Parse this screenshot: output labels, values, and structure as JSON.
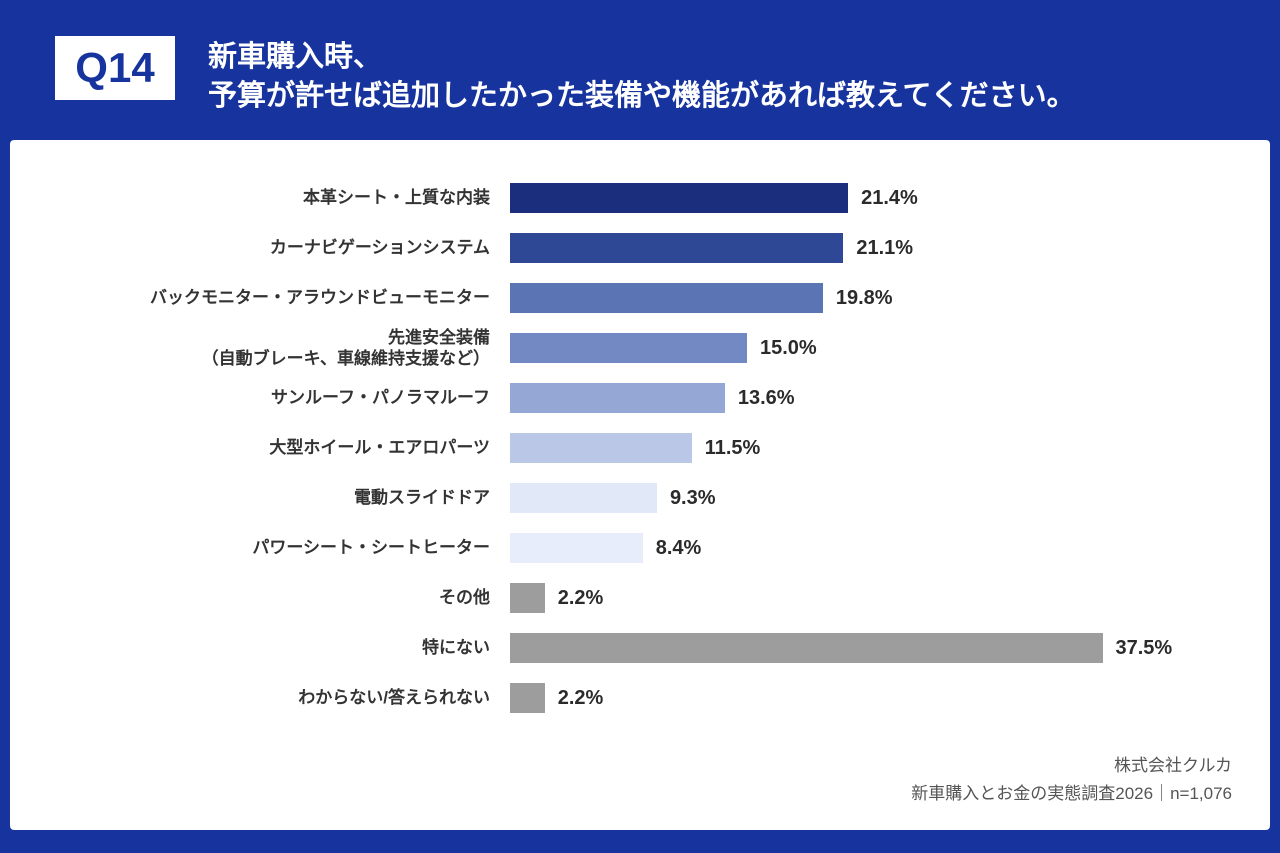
{
  "header": {
    "question_tag": "Q14",
    "title_line1": "新車購入時、",
    "title_line2": "予算が許せば追加したかった装備や機能があれば教えてください。"
  },
  "chart_data": {
    "type": "bar",
    "orientation": "horizontal",
    "title": "新車購入時、予算が許せば追加したかった装備や機能があれば教えてください。",
    "xlim": [
      0,
      40
    ],
    "grid": false,
    "legend": "none",
    "categories": [
      "本革シート・上質な内装",
      "カーナビゲーションシステム",
      "バックモニター・アラウンドビューモニター",
      "先進安全装備\n（自動ブレーキ、車線維持支援など）",
      "サンルーフ・パノラマルーフ",
      "大型ホイール・エアロパーツ",
      "電動スライドドア",
      "パワーシート・シートヒーター",
      "その他",
      "特にない",
      "わからない/答えられない"
    ],
    "values": [
      21.4,
      21.1,
      19.8,
      15.0,
      13.6,
      11.5,
      9.3,
      8.4,
      2.2,
      37.5,
      2.2
    ],
    "value_labels": [
      "21.4%",
      "21.1%",
      "19.8%",
      "15.0%",
      "13.6%",
      "11.5%",
      "9.3%",
      "8.4%",
      "2.2%",
      "37.5%",
      "2.2%"
    ],
    "bar_colors": [
      "#1b2d7d",
      "#2e4896",
      "#5b74b4",
      "#7389c4",
      "#95a7d5",
      "#bac7e6",
      "#e1e8f7",
      "#e7edfa",
      "#9d9d9d",
      "#9d9d9d",
      "#9d9d9d"
    ],
    "accent_color": "#16339E"
  },
  "footer": {
    "company": "株式会社クルカ",
    "survey": "新車購入とお金の実態調査2026｜n=1,076"
  }
}
